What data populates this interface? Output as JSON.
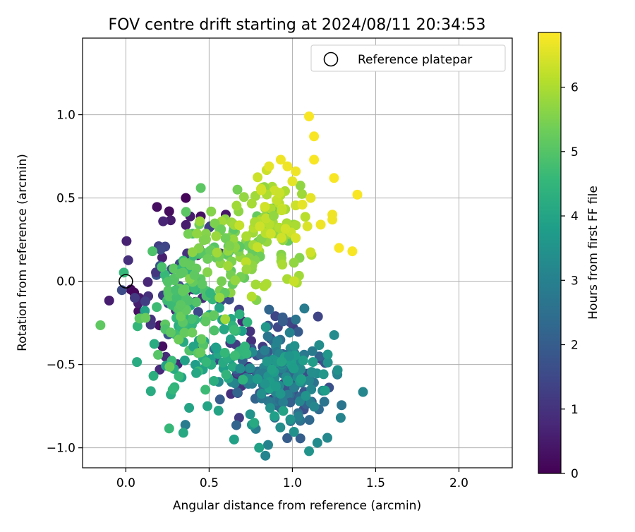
{
  "chart_data": {
    "type": "scatter",
    "title": "FOV centre drift starting at 2024/08/11 20:34:53",
    "xlabel": "Angular distance from reference (arcmin)",
    "ylabel": "Rotation from reference (arcmin)",
    "xlim": [
      -0.26,
      2.32
    ],
    "ylim": [
      -1.12,
      1.46
    ],
    "x_ticks": [
      0.0,
      0.5,
      1.0,
      1.5,
      2.0
    ],
    "x_tick_labels": [
      "0.0",
      "0.5",
      "1.0",
      "1.5",
      "2.0"
    ],
    "y_ticks": [
      -1.0,
      -0.5,
      0.0,
      0.5,
      1.0
    ],
    "y_tick_labels": [
      "−1.0",
      "−0.5",
      "0.0",
      "0.5",
      "1.0"
    ],
    "grid": true,
    "legend": {
      "placement": "top-right",
      "entries": [
        "Reference platepar"
      ]
    },
    "reference_point": {
      "x": 0.0,
      "y": 0.0,
      "label": "Reference platepar"
    },
    "colorbar": {
      "label": "Hours from first FF file",
      "colormap": "viridis",
      "range": [
        0,
        6.85
      ],
      "ticks": [
        0,
        1,
        2,
        3,
        4,
        5,
        6
      ],
      "tick_labels": [
        "0",
        "1",
        "2",
        "3",
        "4",
        "5",
        "6"
      ]
    },
    "clusters": [
      {
        "hour_min": 0.1,
        "hour_max": 1.8,
        "cx": 0.25,
        "cy": 0.0,
        "sx": 0.17,
        "sy": 0.22,
        "n": 55
      },
      {
        "hour_min": 0.8,
        "hour_max": 2.4,
        "cx": 0.8,
        "cy": -0.5,
        "sx": 0.15,
        "sy": 0.15,
        "n": 55
      },
      {
        "hour_min": 1.6,
        "hour_max": 3.0,
        "cx": 0.95,
        "cy": -0.58,
        "sx": 0.12,
        "sy": 0.15,
        "n": 100
      },
      {
        "hour_min": 2.8,
        "hour_max": 4.0,
        "cx": 0.9,
        "cy": -0.6,
        "sx": 0.16,
        "sy": 0.17,
        "n": 90
      },
      {
        "hour_min": 3.8,
        "hour_max": 4.7,
        "cx": 0.45,
        "cy": -0.4,
        "sx": 0.18,
        "sy": 0.17,
        "n": 70
      },
      {
        "hour_min": 4.5,
        "hour_max": 5.3,
        "cx": 0.33,
        "cy": -0.12,
        "sx": 0.12,
        "sy": 0.17,
        "n": 80
      },
      {
        "hour_min": 5.0,
        "hour_max": 5.9,
        "cx": 0.6,
        "cy": 0.18,
        "sx": 0.16,
        "sy": 0.14,
        "n": 100
      },
      {
        "hour_min": 5.7,
        "hour_max": 6.4,
        "cx": 0.88,
        "cy": 0.38,
        "sx": 0.11,
        "sy": 0.14,
        "n": 70
      }
    ],
    "points": [
      {
        "x": 1.1,
        "y": 0.99,
        "hour": 6.8
      },
      {
        "x": 1.13,
        "y": 0.87,
        "hour": 6.8
      },
      {
        "x": 1.13,
        "y": 0.73,
        "hour": 6.8
      },
      {
        "x": 1.25,
        "y": 0.62,
        "hour": 6.8
      },
      {
        "x": 1.39,
        "y": 0.52,
        "hour": 6.8
      },
      {
        "x": 1.28,
        "y": 0.2,
        "hour": 6.8
      },
      {
        "x": 1.36,
        "y": 0.18,
        "hour": 6.8
      },
      {
        "x": 1.24,
        "y": 0.4,
        "hour": 6.7
      },
      {
        "x": 1.24,
        "y": 0.37,
        "hour": 6.7
      },
      {
        "x": 1.17,
        "y": 0.34,
        "hour": 6.7
      },
      {
        "x": 1.11,
        "y": 0.5,
        "hour": 6.6
      },
      {
        "x": 0.93,
        "y": 0.73,
        "hour": 6.7
      },
      {
        "x": 0.97,
        "y": 0.69,
        "hour": 6.7
      },
      {
        "x": 1.02,
        "y": 0.66,
        "hour": 6.7
      },
      {
        "x": 1.0,
        "y": 0.6,
        "hour": 6.6
      },
      {
        "x": 0.86,
        "y": 0.69,
        "hour": 6.6
      },
      {
        "x": 1.06,
        "y": 0.46,
        "hour": 6.6
      },
      {
        "x": 1.09,
        "y": 0.33,
        "hour": 6.5
      },
      {
        "x": 1.02,
        "y": 0.26,
        "hour": 6.5
      },
      {
        "x": 1.01,
        "y": 0.0,
        "hour": 6.3
      },
      {
        "x": 0.83,
        "y": -0.03,
        "hour": 6.0
      },
      {
        "x": 0.78,
        "y": -0.02,
        "hour": 5.9
      },
      {
        "x": 0.67,
        "y": 0.55,
        "hour": 5.4
      },
      {
        "x": 0.45,
        "y": 0.56,
        "hour": 5.1
      },
      {
        "x": 0.16,
        "y": 0.18,
        "hour": 4.9
      },
      {
        "x": 0.07,
        "y": -0.27,
        "hour": 4.5
      },
      {
        "x": 0.15,
        "y": -0.66,
        "hour": 4.2
      },
      {
        "x": 0.27,
        "y": -0.68,
        "hour": 4.2
      },
      {
        "x": 0.38,
        "y": -0.76,
        "hour": 4.0
      },
      {
        "x": 0.49,
        "y": -0.75,
        "hour": 4.0
      },
      {
        "x": 0.65,
        "y": -0.95,
        "hour": 3.9
      },
      {
        "x": 0.8,
        "y": -1.0,
        "hour": 3.9
      },
      {
        "x": 1.1,
        "y": -1.02,
        "hour": 3.5
      },
      {
        "x": 1.15,
        "y": -0.97,
        "hour": 3.3
      },
      {
        "x": 1.21,
        "y": -0.94,
        "hour": 3.2
      },
      {
        "x": 1.29,
        "y": -0.82,
        "hour": 3.1
      },
      {
        "x": 1.27,
        "y": -0.56,
        "hour": 3.1
      },
      {
        "x": 1.02,
        "y": -0.23,
        "hour": 2.6
      },
      {
        "x": 1.12,
        "y": -0.42,
        "hour": 2.8
      },
      {
        "x": 0.86,
        "y": -0.17,
        "hour": 2.2
      },
      {
        "x": 0.62,
        "y": -0.11,
        "hour": 1.6
      },
      {
        "x": 0.68,
        "y": -0.17,
        "hour": 1.3
      },
      {
        "x": 0.68,
        "y": -0.82,
        "hour": 1.2
      },
      {
        "x": 0.36,
        "y": 0.5,
        "hour": 0.1
      },
      {
        "x": 0.26,
        "y": 0.42,
        "hour": 0.2
      },
      {
        "x": 0.45,
        "y": 0.39,
        "hour": 0.3
      },
      {
        "x": 0.6,
        "y": 0.4,
        "hour": 0.4
      },
      {
        "x": 0.65,
        "y": 0.33,
        "hour": 0.6
      },
      {
        "x": 0.03,
        "y": -0.05,
        "hour": 0.2
      },
      {
        "x": 0.08,
        "y": -0.1,
        "hour": 0.5
      },
      {
        "x": 0.15,
        "y": -0.23,
        "hour": 1.0
      }
    ]
  }
}
